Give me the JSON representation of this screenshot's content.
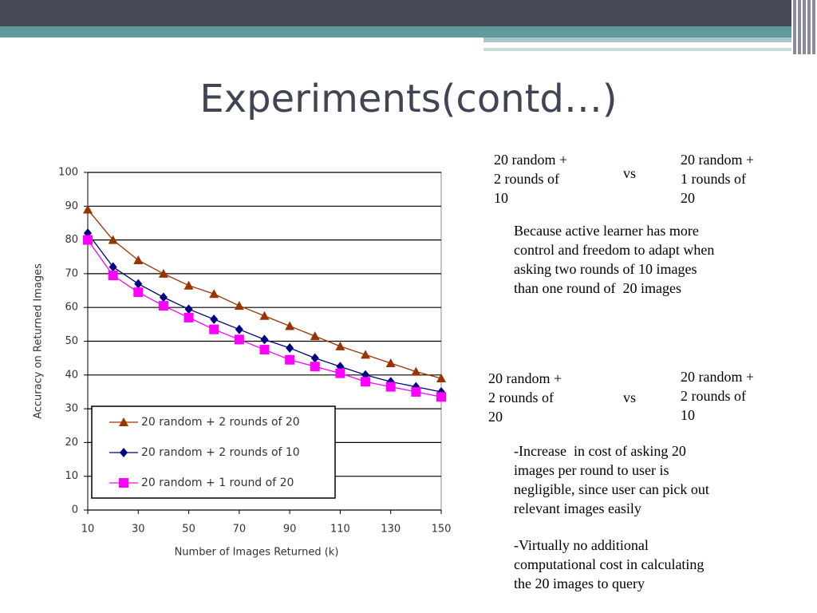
{
  "slide": {
    "title": "Experiments(contd…)",
    "comparisons": [
      {
        "left": [
          "20 random +",
          "2 rounds of",
          "10"
        ],
        "vs": "vs",
        "right": [
          "20 random +",
          "1 rounds of",
          "20"
        ],
        "notes": [
          [
            "Because active learner has more",
            "control and freedom to adapt when",
            "asking two rounds of 10 images",
            "than one round of  20 images"
          ]
        ]
      },
      {
        "left": [
          "20 random +",
          "2 rounds of",
          "20"
        ],
        "vs": "vs",
        "right": [
          "20 random +",
          "2 rounds of",
          "10"
        ],
        "notes": [
          [
            "-Increase  in cost of asking 20",
            "images per round to user is",
            "negligible, since user can pick out",
            "relevant images easily"
          ],
          [
            "-Virtually no additional",
            "computational cost in calculating",
            "the 20 images to query"
          ]
        ]
      }
    ]
  },
  "chart_data": {
    "type": "line",
    "x_label": "Number of Images Returned (k)",
    "y_label": "Accuracy on Returned Images",
    "x": [
      10,
      20,
      30,
      40,
      50,
      60,
      70,
      80,
      90,
      100,
      110,
      120,
      130,
      140,
      150
    ],
    "xlim": [
      10,
      150
    ],
    "xticks": [
      10,
      30,
      50,
      70,
      90,
      110,
      130,
      150
    ],
    "ylim": [
      0,
      100
    ],
    "yticks": [
      0,
      10,
      20,
      30,
      40,
      50,
      60,
      70,
      80,
      90,
      100
    ],
    "grid": true,
    "legend": "lower left",
    "series": [
      {
        "name": "20 random + 2 rounds of 20",
        "color": "#993300",
        "marker": "triangle",
        "values": [
          89,
          80,
          74,
          70,
          66.5,
          64,
          60.5,
          57.5,
          54.5,
          51.5,
          48.5,
          46,
          43.5,
          41,
          39
        ]
      },
      {
        "name": "20 random + 2 rounds of 10",
        "color": "#000080",
        "marker": "diamond",
        "values": [
          82,
          72,
          67,
          63,
          59.5,
          56.5,
          53.5,
          50.5,
          48,
          45,
          42.5,
          40,
          38,
          36.5,
          35
        ]
      },
      {
        "name": "20 random + 1 round of 20",
        "color": "#ff00ff",
        "marker": "square",
        "values": [
          80,
          69.5,
          64.5,
          60.5,
          57,
          53.5,
          50.5,
          47.5,
          44.5,
          42.5,
          40.5,
          38,
          36.5,
          35,
          33.5
        ]
      }
    ]
  }
}
